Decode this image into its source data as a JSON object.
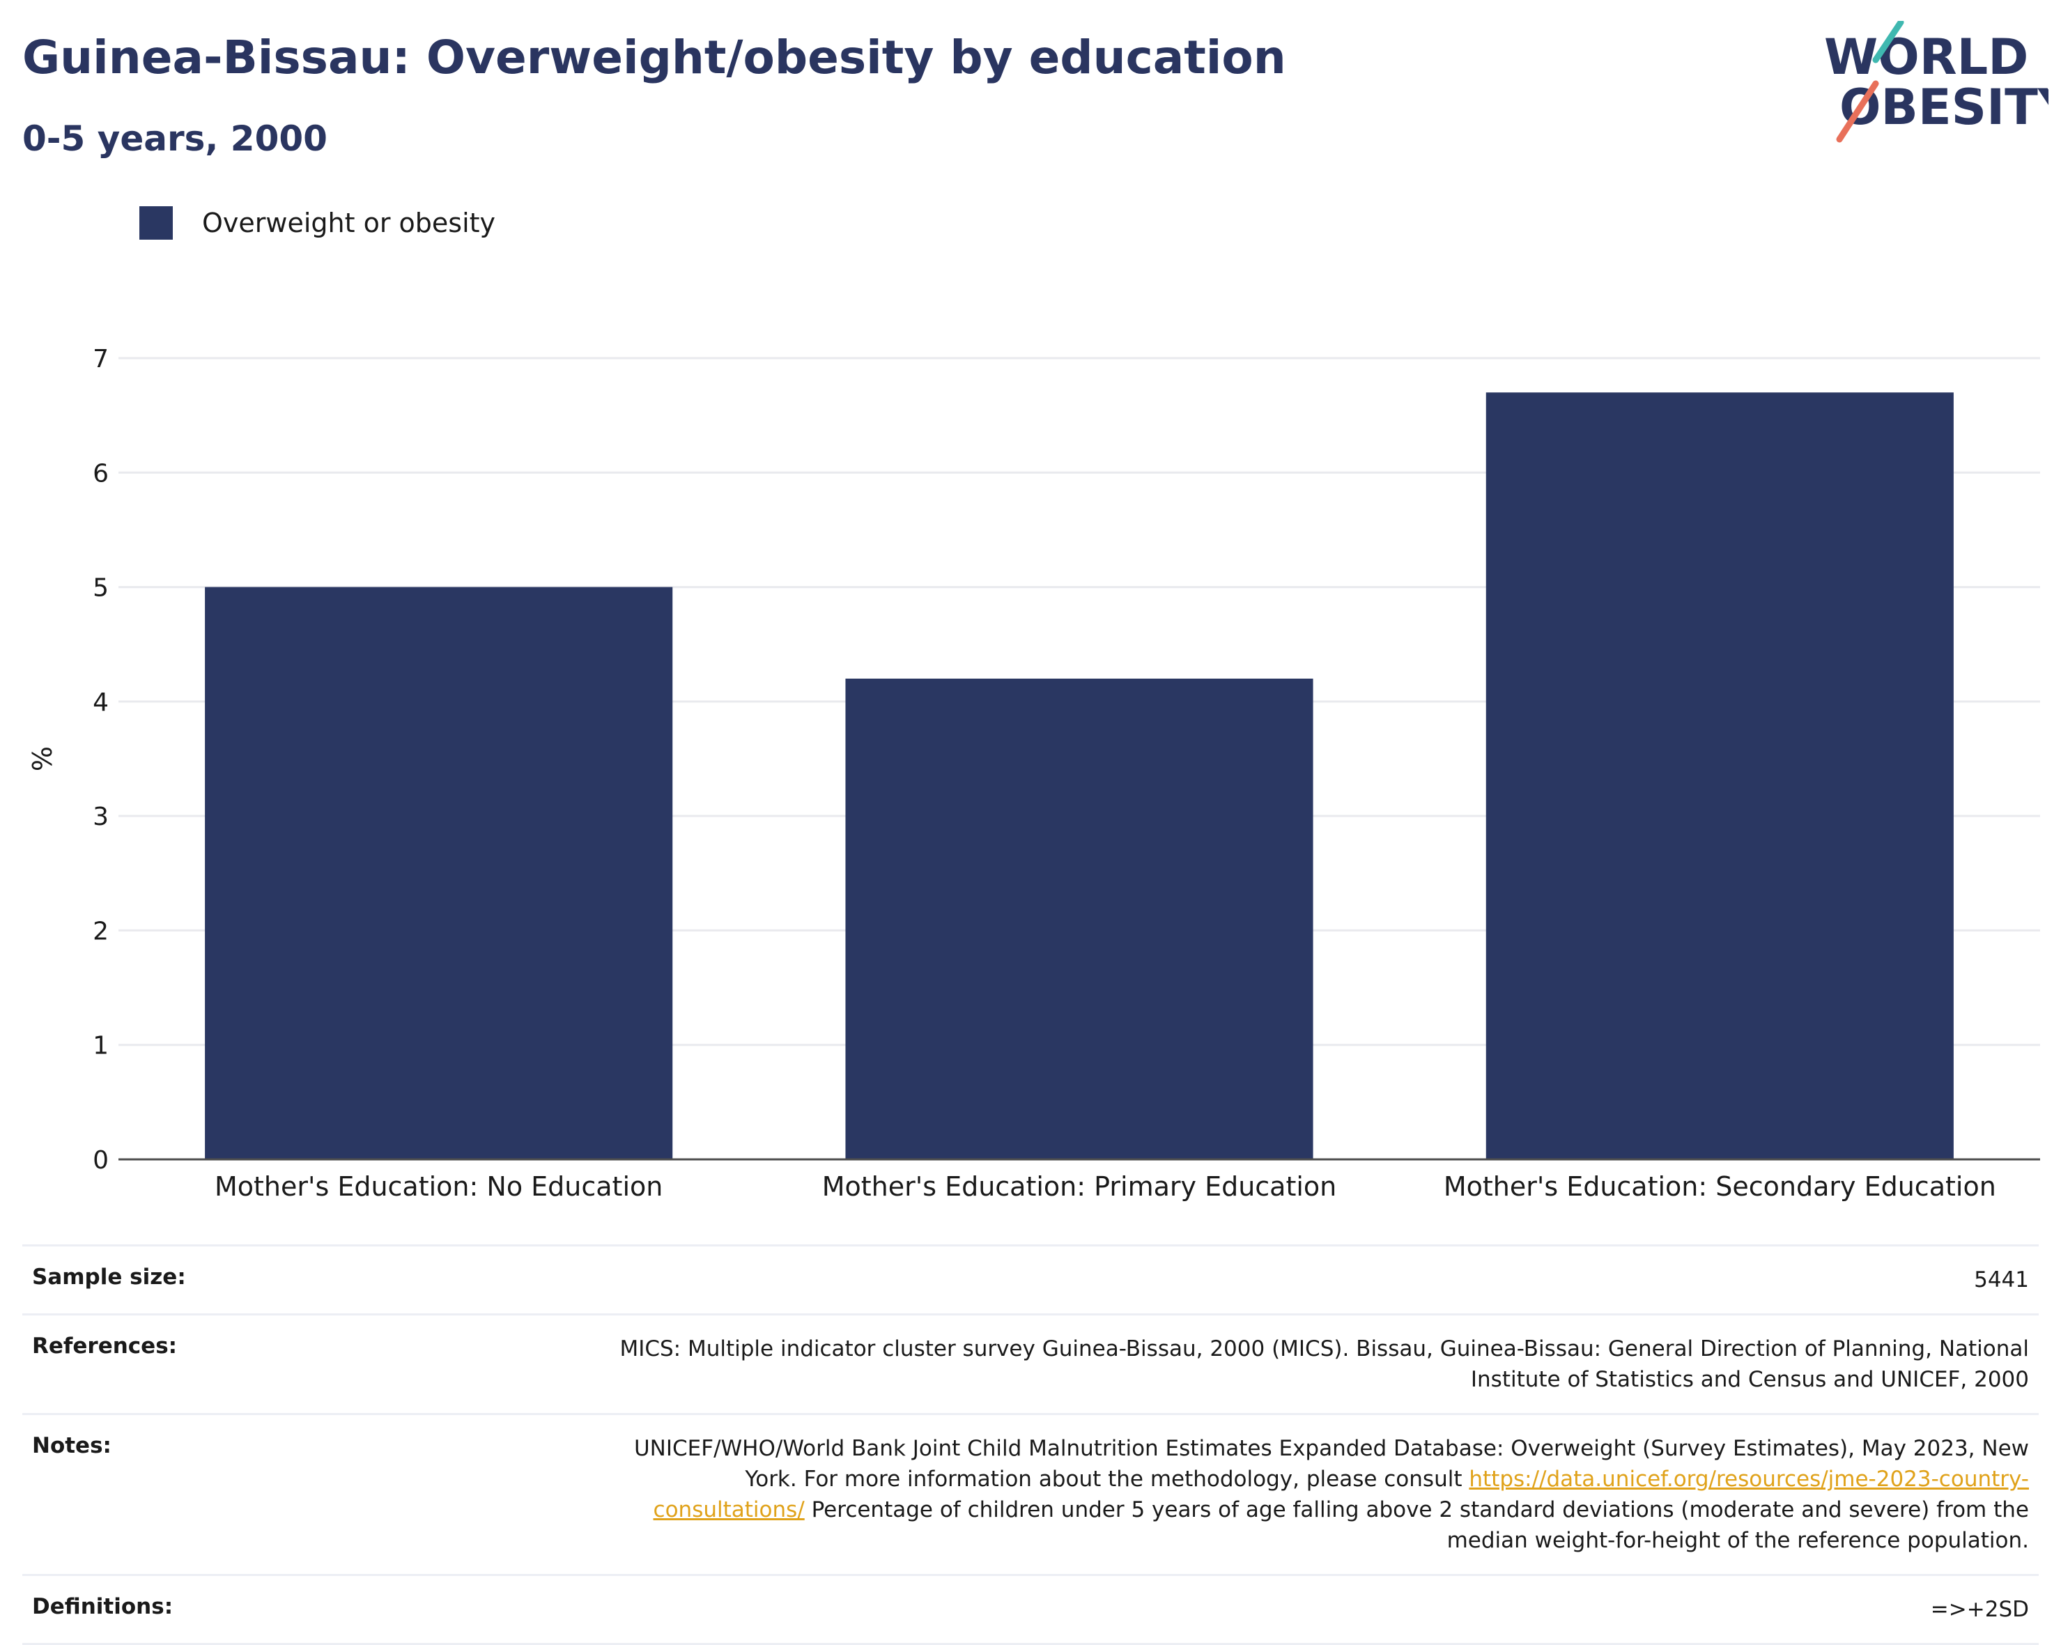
{
  "header": {
    "title": "Guinea-Bissau: Overweight/obesity by education",
    "subtitle": "0-5 years, 2000"
  },
  "logo": {
    "line1": "WORLD",
    "line2": "OBESITY",
    "colors": {
      "text": "#2a3560",
      "accent_teal": "#3fb8b0",
      "accent_red": "#e8705a"
    }
  },
  "colors": {
    "bar": "#2a3762",
    "title": "#2a3560",
    "grid": "#e9eaee",
    "axis": "#4d4d4d",
    "link": "#e0a21a"
  },
  "chart_data": {
    "type": "bar",
    "categories": [
      "Mother's Education: No Education",
      "Mother's Education: Primary Education",
      "Mother's Education: Secondary Education"
    ],
    "series": [
      {
        "name": "Overweight or obesity",
        "values": [
          5.0,
          4.2,
          6.7
        ]
      }
    ],
    "ylabel": "%",
    "ylim": [
      0,
      7
    ],
    "yticks": [
      "0",
      "1",
      "2",
      "3",
      "4",
      "5",
      "6",
      "7"
    ],
    "grid": true,
    "legend_position": "top-left"
  },
  "info": {
    "rows": [
      {
        "label": "Sample size:",
        "value": "5441"
      },
      {
        "label": "References:",
        "value": "MICS: Multiple indicator cluster survey Guinea-Bissau, 2000 (MICS). Bissau, Guinea-Bissau: General Direction of Planning, National Institute of Statistics and Census and UNICEF, 2000"
      },
      {
        "label": "Notes:",
        "value_prefix": "UNICEF/WHO/World Bank Joint Child Malnutrition Estimates Expanded Database: Overweight (Survey Estimates), May 2023, New York. For more information about the methodology, please consult ",
        "link": "https://data.unicef.org/resources/jme-2023-country-consultations/",
        "value_suffix": " Percentage of children under 5 years of age falling above 2 standard deviations (moderate and severe) from the median weight-for-height of the reference population."
      },
      {
        "label": "Definitions:",
        "value": "=>+2SD"
      }
    ]
  }
}
